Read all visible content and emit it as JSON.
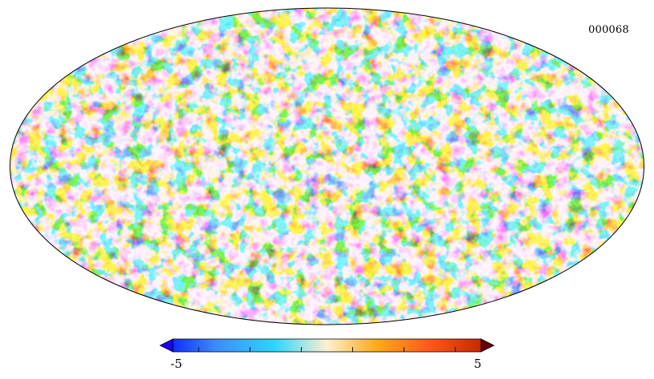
{
  "map": {
    "label": "000068",
    "projection": "mollweide",
    "colormap": "planck"
  },
  "colorbar": {
    "min_label": "-5",
    "max_label": "5",
    "min_value": -5,
    "max_value": 5,
    "extend": "both",
    "colors": {
      "low_extend": "#1a00ff",
      "c1": "#0f30ff",
      "c2": "#3c8cff",
      "c3": "#2cd6ff",
      "c4": "#fff0d0",
      "c5": "#ffaa18",
      "c6": "#ff5a18",
      "c7": "#c82800",
      "high_extend": "#640000"
    }
  }
}
